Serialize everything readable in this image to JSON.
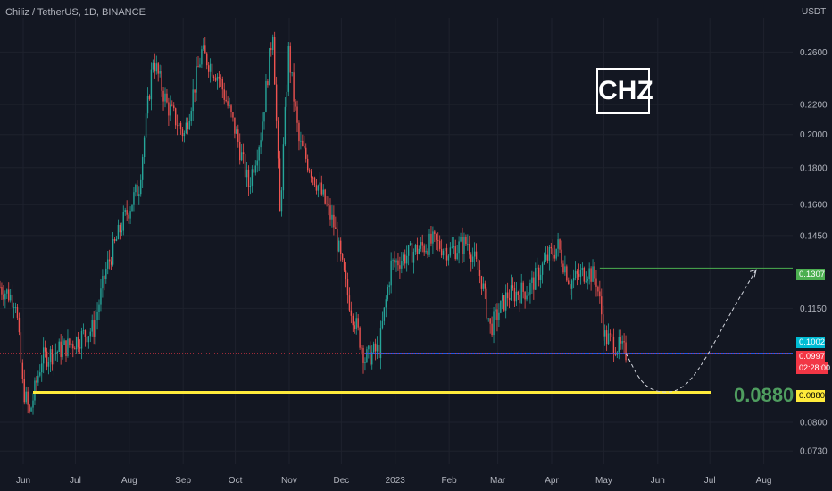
{
  "header": {
    "title": "Chiliz / TetherUS, 1D, BINANCE",
    "currency": "USDT",
    "logo_text": "CHZ"
  },
  "annotation": {
    "target_text": "0.0880"
  },
  "price_tags": {
    "resistance": "0.1307",
    "ma_value": "0.1002",
    "last_price": "0.0997",
    "countdown": "02:28:00",
    "support": "0.0880"
  },
  "colors": {
    "background": "#131722",
    "up": "#26a69a",
    "down": "#ef5350",
    "support_line": "#ffeb3b",
    "resistance_line": "#4caf50",
    "blue_line": "#2962ff",
    "price_tag": "#f23645"
  },
  "chart_data": {
    "type": "candlestick",
    "y_scale": "log",
    "ylim": [
      0.07,
      0.29
    ],
    "y_ticks": [
      "0.2600",
      "0.2200",
      "0.2000",
      "0.1800",
      "0.1600",
      "0.1450",
      "0.1150",
      "0.0800",
      "0.0730"
    ],
    "x_ticks": [
      "Jun",
      "Jul",
      "Aug",
      "Sep",
      "Oct",
      "Nov",
      "Dec",
      "2023",
      "Feb",
      "Mar",
      "Apr",
      "May",
      "Jun",
      "Jul",
      "Aug"
    ],
    "x_range": [
      "2022-06-01",
      "2023-08-31"
    ],
    "close_path": [
      [
        "2022-06-01",
        0.123
      ],
      [
        "2022-06-10",
        0.118
      ],
      [
        "2022-06-14",
        0.09
      ],
      [
        "2022-06-18",
        0.082
      ],
      [
        "2022-06-25",
        0.098
      ],
      [
        "2022-07-10",
        0.102
      ],
      [
        "2022-07-25",
        0.108
      ],
      [
        "2022-08-01",
        0.13
      ],
      [
        "2022-08-10",
        0.15
      ],
      [
        "2022-08-20",
        0.17
      ],
      [
        "2022-08-28",
        0.255
      ],
      [
        "2022-09-05",
        0.22
      ],
      [
        "2022-09-15",
        0.2
      ],
      [
        "2022-09-25",
        0.26
      ],
      [
        "2022-10-05",
        0.24
      ],
      [
        "2022-10-15",
        0.2
      ],
      [
        "2022-10-22",
        0.17
      ],
      [
        "2022-10-29",
        0.2
      ],
      [
        "2022-11-05",
        0.28
      ],
      [
        "2022-11-09",
        0.155
      ],
      [
        "2022-11-14",
        0.26
      ],
      [
        "2022-11-20",
        0.195
      ],
      [
        "2022-12-01",
        0.17
      ],
      [
        "2022-12-10",
        0.15
      ],
      [
        "2022-12-18",
        0.12
      ],
      [
        "2022-12-28",
        0.098
      ],
      [
        "2023-01-05",
        0.101
      ],
      [
        "2023-01-12",
        0.132
      ],
      [
        "2023-01-25",
        0.138
      ],
      [
        "2023-02-05",
        0.142
      ],
      [
        "2023-02-15",
        0.138
      ],
      [
        "2023-02-25",
        0.142
      ],
      [
        "2023-03-05",
        0.126
      ],
      [
        "2023-03-10",
        0.108
      ],
      [
        "2023-03-20",
        0.12
      ],
      [
        "2023-04-01",
        0.122
      ],
      [
        "2023-04-12",
        0.135
      ],
      [
        "2023-04-18",
        0.14
      ],
      [
        "2023-04-25",
        0.125
      ],
      [
        "2023-05-05",
        0.13
      ],
      [
        "2023-05-10",
        0.126
      ],
      [
        "2023-05-15",
        0.105
      ],
      [
        "2023-05-22",
        0.102
      ],
      [
        "2023-05-27",
        0.0997
      ]
    ],
    "horizontal_lines": [
      {
        "price": 0.088,
        "start": "2022-06-20",
        "end": "2023-07-15",
        "color": "#ffeb3b"
      },
      {
        "price": 0.1307,
        "start": "2023-05-12",
        "end": "2023-08-31",
        "color": "#4caf50"
      },
      {
        "price": 0.0997,
        "start": "2022-12-28",
        "end": "2023-08-31",
        "color": "#2962ff"
      }
    ],
    "projection": [
      [
        "2023-05-27",
        0.0997
      ],
      [
        "2023-06-05",
        0.0905
      ],
      [
        "2023-06-15",
        0.0878
      ],
      [
        "2023-06-28",
        0.0885
      ],
      [
        "2023-07-10",
        0.096
      ],
      [
        "2023-07-25",
        0.112
      ],
      [
        "2023-08-10",
        0.13
      ]
    ]
  }
}
